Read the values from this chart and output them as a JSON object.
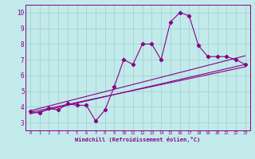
{
  "xlabel": "Windchill (Refroidissement éolien,°C)",
  "xlim": [
    -0.5,
    23.5
  ],
  "ylim": [
    2.5,
    10.5
  ],
  "xticks": [
    0,
    1,
    2,
    3,
    4,
    5,
    6,
    7,
    8,
    9,
    10,
    11,
    12,
    13,
    14,
    15,
    16,
    17,
    18,
    19,
    20,
    21,
    22,
    23
  ],
  "yticks": [
    3,
    4,
    5,
    6,
    7,
    8,
    9,
    10
  ],
  "bg_color": "#c2eaea",
  "grid_color": "#9ecece",
  "line_color": "#880088",
  "line1_x": [
    0,
    1,
    2,
    3,
    4,
    5,
    6,
    7,
    8,
    9,
    10,
    11,
    12,
    13,
    14,
    15,
    16,
    17,
    18,
    19,
    20,
    21,
    22,
    23
  ],
  "line1_y": [
    3.7,
    3.6,
    3.9,
    3.8,
    4.2,
    4.1,
    4.1,
    3.1,
    3.8,
    5.3,
    7.0,
    6.7,
    8.0,
    8.0,
    7.0,
    9.4,
    10.0,
    9.8,
    7.9,
    7.2,
    7.2,
    7.2,
    7.0,
    6.7
  ],
  "line2_x": [
    0,
    23
  ],
  "line2_y": [
    3.65,
    6.55
  ],
  "line3_x": [
    0,
    23
  ],
  "line3_y": [
    3.55,
    6.7
  ],
  "line4_x": [
    0,
    23
  ],
  "line4_y": [
    3.75,
    7.25
  ]
}
